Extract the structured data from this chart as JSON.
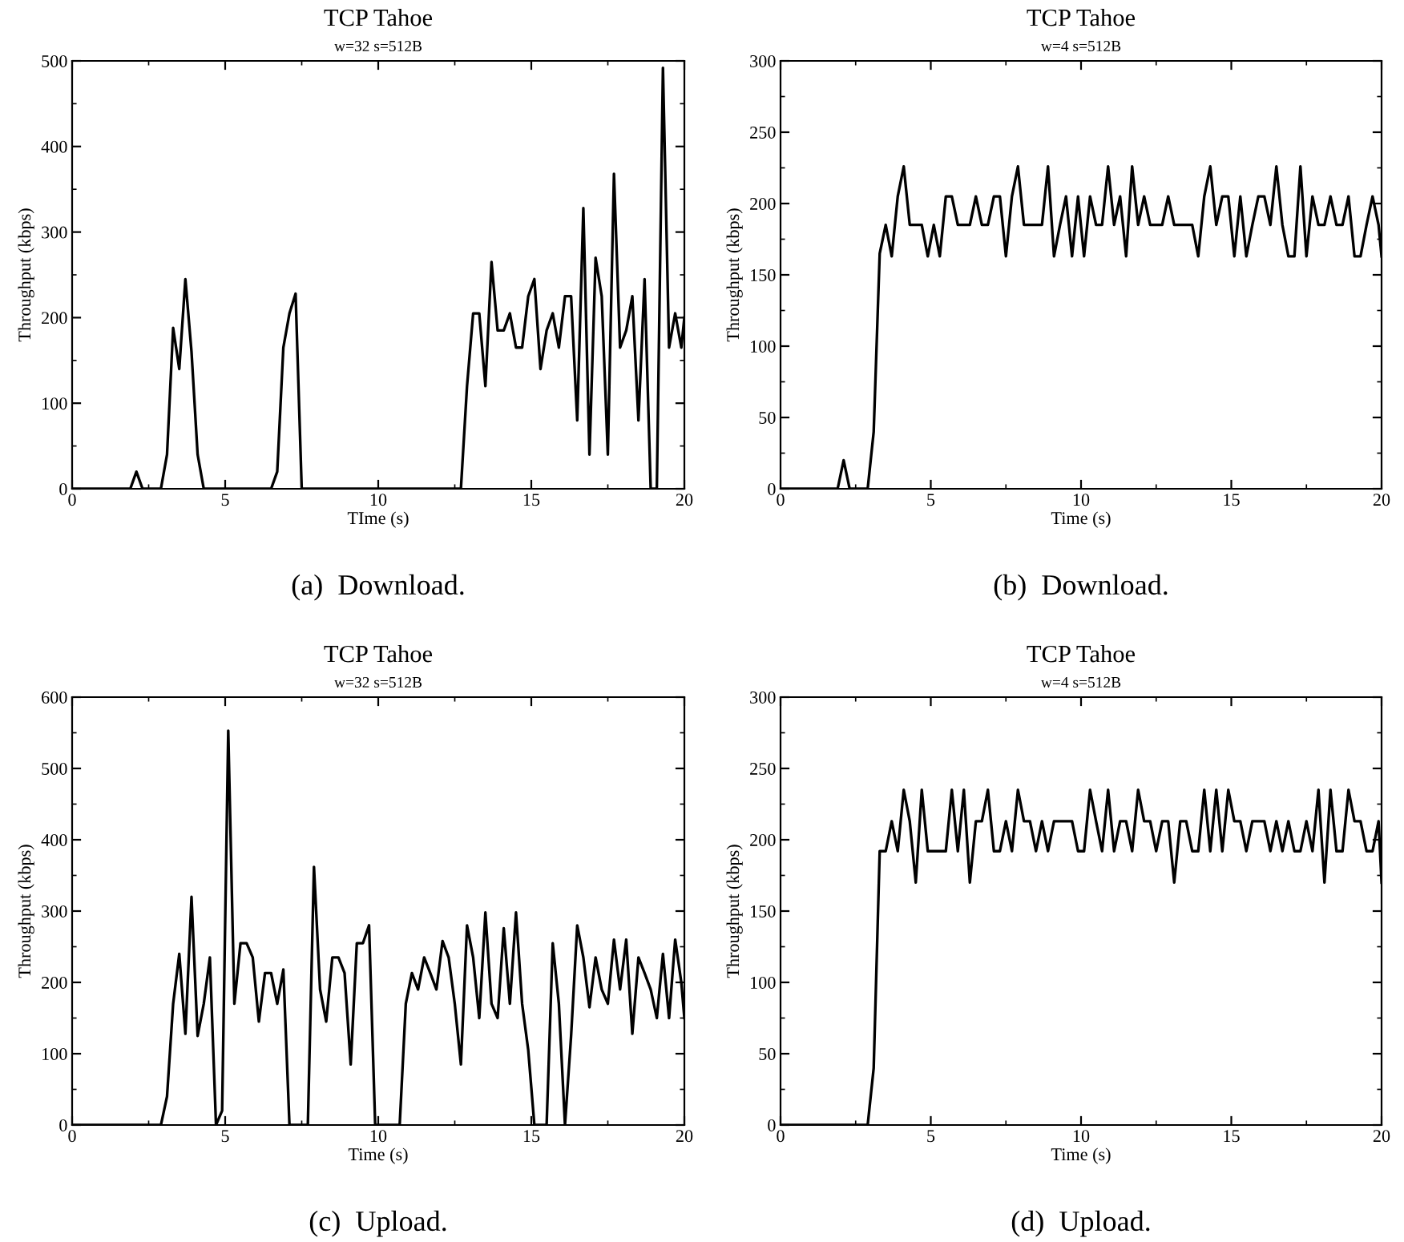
{
  "chart_data": [
    {
      "type": "line",
      "title": "TCP Tahoe",
      "subtitle": "w=32 s=512B",
      "xlabel": "TIme (s)",
      "ylabel": "Throughput (kbps)",
      "annotations": [
        "(a)  Download."
      ],
      "xlim": [
        0,
        20
      ],
      "xticks": [
        0,
        5,
        10,
        15,
        20
      ],
      "ylim": [
        0,
        500
      ],
      "yticks": [
        0,
        100,
        200,
        300,
        400,
        500
      ],
      "grid": false,
      "marker": "none",
      "line_style": "solid",
      "series": [
        {
          "color": "#000000",
          "x": [
            0,
            1.9,
            2.1,
            2.3,
            2.9,
            3.1,
            3.3,
            3.5,
            3.7,
            3.9,
            4.1,
            4.3,
            6.5,
            6.7,
            6.9,
            7.1,
            7.3,
            7.5,
            12.7,
            12.9,
            13.1,
            13.3,
            13.5,
            13.7,
            13.9,
            14.1,
            14.3,
            14.5,
            14.7,
            14.9,
            15.1,
            15.3,
            15.5,
            15.7,
            15.9,
            16.1,
            16.3,
            16.5,
            16.7,
            16.9,
            17.1,
            17.3,
            17.5,
            17.7,
            17.9,
            18.1,
            18.3,
            18.5,
            18.7,
            18.9,
            19.1,
            19.3,
            19.5,
            19.7,
            19.9,
            20
          ],
          "values": [
            0,
            0,
            20,
            0,
            0,
            40,
            188,
            140,
            245,
            160,
            40,
            0,
            0,
            20,
            165,
            205,
            228,
            0,
            0,
            120,
            205,
            205,
            120,
            265,
            185,
            185,
            205,
            165,
            165,
            225,
            245,
            140,
            185,
            205,
            165,
            225,
            225,
            80,
            328,
            40,
            270,
            225,
            40,
            368,
            165,
            185,
            225,
            80,
            245,
            0,
            0,
            492,
            165,
            205,
            165,
            200
          ]
        }
      ]
    },
    {
      "type": "line",
      "title": "TCP Tahoe",
      "subtitle": "w=4 s=512B",
      "xlabel": "Time (s)",
      "ylabel": "Throughput (kbps)",
      "annotations": [
        "(b)  Download."
      ],
      "xlim": [
        0,
        20
      ],
      "xticks": [
        0,
        5,
        10,
        15,
        20
      ],
      "ylim": [
        0,
        300
      ],
      "yticks": [
        0,
        50,
        100,
        150,
        200,
        250,
        300
      ],
      "grid": false,
      "marker": "none",
      "line_style": "solid",
      "series": [
        {
          "color": "#000000",
          "x": [
            0,
            1.9,
            2.1,
            2.3,
            2.9,
            3.1,
            3.3,
            3.5,
            3.7,
            3.9,
            4.1,
            4.3,
            4.5,
            4.7,
            4.9,
            5.1,
            5.3,
            5.5,
            5.7,
            5.9,
            6.1,
            6.3,
            6.5,
            6.7,
            6.9,
            7.1,
            7.3,
            7.5,
            7.7,
            7.9,
            8.1,
            8.3,
            8.5,
            8.7,
            8.9,
            9.1,
            9.3,
            9.5,
            9.7,
            9.9,
            10.1,
            10.3,
            10.5,
            10.7,
            10.9,
            11.1,
            11.3,
            11.5,
            11.7,
            11.9,
            12.1,
            12.3,
            12.5,
            12.7,
            12.9,
            13.1,
            13.3,
            13.5,
            13.7,
            13.9,
            14.1,
            14.3,
            14.5,
            14.7,
            14.9,
            15.1,
            15.3,
            15.5,
            15.7,
            15.9,
            16.1,
            16.3,
            16.5,
            16.7,
            16.9,
            17.1,
            17.3,
            17.5,
            17.7,
            17.9,
            18.1,
            18.3,
            18.5,
            18.7,
            18.9,
            19.1,
            19.3,
            19.5,
            19.7,
            19.9,
            20
          ],
          "values": [
            0,
            0,
            20,
            0,
            0,
            40,
            165,
            185,
            163,
            205,
            226,
            185,
            185,
            185,
            163,
            185,
            163,
            205,
            205,
            185,
            185,
            185,
            205,
            185,
            185,
            205,
            205,
            163,
            205,
            226,
            185,
            185,
            185,
            185,
            226,
            163,
            185,
            205,
            163,
            205,
            163,
            205,
            185,
            185,
            226,
            185,
            205,
            163,
            226,
            185,
            205,
            185,
            185,
            185,
            205,
            185,
            185,
            185,
            185,
            163,
            205,
            226,
            185,
            205,
            205,
            163,
            205,
            163,
            185,
            205,
            205,
            185,
            226,
            185,
            163,
            163,
            226,
            163,
            205,
            185,
            185,
            205,
            185,
            185,
            205,
            163,
            163,
            185,
            205,
            185,
            163
          ]
        }
      ]
    },
    {
      "type": "line",
      "title": "TCP Tahoe",
      "subtitle": "w=32 s=512B",
      "xlabel": "Time (s)",
      "ylabel": "Throughput (kbps)",
      "annotations": [
        "(c)  Upload."
      ],
      "xlim": [
        0,
        20
      ],
      "xticks": [
        0,
        5,
        10,
        15,
        20
      ],
      "ylim": [
        0,
        600
      ],
      "yticks": [
        0,
        100,
        200,
        300,
        400,
        500,
        600
      ],
      "grid": false,
      "marker": "none",
      "line_style": "solid",
      "series": [
        {
          "color": "#000000",
          "x": [
            0,
            2.9,
            3.1,
            3.3,
            3.5,
            3.7,
            3.9,
            4.1,
            4.3,
            4.5,
            4.7,
            4.9,
            5.1,
            5.3,
            5.5,
            5.7,
            5.9,
            6.1,
            6.3,
            6.5,
            6.7,
            6.9,
            7.1,
            7.7,
            7.9,
            8.1,
            8.3,
            8.5,
            8.7,
            8.9,
            9.1,
            9.3,
            9.5,
            9.7,
            9.9,
            10.7,
            10.9,
            11.1,
            11.3,
            11.5,
            11.7,
            11.9,
            12.1,
            12.3,
            12.5,
            12.7,
            12.9,
            13.1,
            13.3,
            13.5,
            13.7,
            13.9,
            14.1,
            14.3,
            14.5,
            14.7,
            14.9,
            15.1,
            15.5,
            15.7,
            15.9,
            16.1,
            16.3,
            16.5,
            16.7,
            16.9,
            17.1,
            17.3,
            17.5,
            17.7,
            17.9,
            18.1,
            18.3,
            18.5,
            18.7,
            18.9,
            19.1,
            19.3,
            19.5,
            19.7,
            19.9,
            20
          ],
          "values": [
            0,
            0,
            40,
            170,
            240,
            128,
            320,
            125,
            170,
            235,
            0,
            20,
            553,
            170,
            255,
            255,
            235,
            145,
            213,
            213,
            170,
            218,
            0,
            0,
            362,
            190,
            145,
            235,
            235,
            213,
            85,
            255,
            255,
            280,
            0,
            0,
            170,
            213,
            190,
            235,
            213,
            190,
            258,
            235,
            170,
            85,
            280,
            235,
            150,
            298,
            170,
            150,
            276,
            170,
            298,
            170,
            105,
            0,
            0,
            255,
            170,
            0,
            125,
            280,
            235,
            165,
            235,
            190,
            170,
            260,
            190,
            260,
            128,
            235,
            213,
            190,
            150,
            240,
            150,
            260,
            200,
            150
          ]
        }
      ]
    },
    {
      "type": "line",
      "title": "TCP Tahoe",
      "subtitle": "w=4 s=512B",
      "xlabel": "Time (s)",
      "ylabel": "Throughput (kbps)",
      "annotations": [
        "(d)  Upload."
      ],
      "xlim": [
        0,
        20
      ],
      "xticks": [
        0,
        5,
        10,
        15,
        20
      ],
      "ylim": [
        0,
        300
      ],
      "yticks": [
        0,
        50,
        100,
        150,
        200,
        250,
        300
      ],
      "grid": false,
      "marker": "none",
      "line_style": "solid",
      "series": [
        {
          "color": "#000000",
          "x": [
            0,
            2.9,
            3.1,
            3.3,
            3.5,
            3.7,
            3.9,
            4.1,
            4.3,
            4.5,
            4.7,
            4.9,
            5.1,
            5.3,
            5.5,
            5.7,
            5.9,
            6.1,
            6.3,
            6.5,
            6.7,
            6.9,
            7.1,
            7.3,
            7.5,
            7.7,
            7.9,
            8.1,
            8.3,
            8.5,
            8.7,
            8.9,
            9.1,
            9.3,
            9.5,
            9.7,
            9.9,
            10.1,
            10.3,
            10.5,
            10.7,
            10.9,
            11.1,
            11.3,
            11.5,
            11.7,
            11.9,
            12.1,
            12.3,
            12.5,
            12.7,
            12.9,
            13.1,
            13.3,
            13.5,
            13.7,
            13.9,
            14.1,
            14.3,
            14.5,
            14.7,
            14.9,
            15.1,
            15.3,
            15.5,
            15.7,
            15.9,
            16.1,
            16.3,
            16.5,
            16.7,
            16.9,
            17.1,
            17.3,
            17.5,
            17.7,
            17.9,
            18.1,
            18.3,
            18.5,
            18.7,
            18.9,
            19.1,
            19.3,
            19.5,
            19.7,
            19.9,
            20
          ],
          "values": [
            0,
            0,
            40,
            192,
            192,
            213,
            192,
            235,
            213,
            170,
            235,
            192,
            192,
            192,
            192,
            235,
            192,
            235,
            170,
            213,
            213,
            235,
            192,
            192,
            213,
            192,
            235,
            213,
            213,
            192,
            213,
            192,
            213,
            213,
            213,
            213,
            192,
            192,
            235,
            213,
            192,
            235,
            192,
            213,
            213,
            192,
            235,
            213,
            213,
            192,
            213,
            213,
            170,
            213,
            213,
            192,
            192,
            235,
            192,
            235,
            192,
            235,
            213,
            213,
            192,
            213,
            213,
            213,
            192,
            213,
            192,
            213,
            192,
            192,
            213,
            192,
            235,
            170,
            235,
            192,
            192,
            235,
            213,
            213,
            192,
            192,
            213,
            170
          ]
        }
      ]
    }
  ]
}
